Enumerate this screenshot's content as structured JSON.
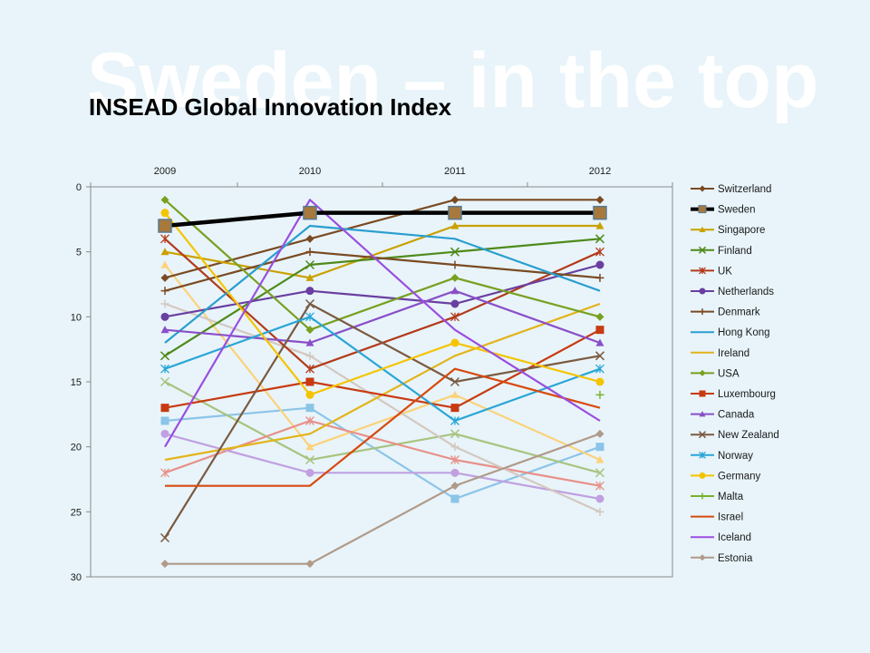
{
  "slide": {
    "heading": "Sweden – in the top",
    "subtitle": "INSEAD Global Innovation Index"
  },
  "chart_data": {
    "type": "line",
    "title": "",
    "categories": [
      "2009",
      "2010",
      "2011",
      "2012"
    ],
    "x_axis_position": "top",
    "ylim": [
      0,
      30
    ],
    "y_reversed": true,
    "y_ticks": [
      0,
      5,
      10,
      15,
      20,
      25,
      30
    ],
    "grid": false,
    "legend_position": "right",
    "series": [
      {
        "name": "Switzerland",
        "values": [
          7,
          4,
          1,
          1
        ],
        "color": "#7a4a22",
        "marker": "diamond"
      },
      {
        "name": "Sweden",
        "values": [
          3,
          2,
          2,
          2
        ],
        "color": "#000000",
        "marker": "square",
        "highlight": true
      },
      {
        "name": "Singapore",
        "values": [
          5,
          7,
          3,
          3
        ],
        "color": "#c9a100",
        "marker": "triangle"
      },
      {
        "name": "Finland",
        "values": [
          13,
          6,
          5,
          4
        ],
        "color": "#4e8a1a",
        "marker": "x"
      },
      {
        "name": "UK",
        "values": [
          4,
          14,
          10,
          5
        ],
        "color": "#b33a1a",
        "marker": "star"
      },
      {
        "name": "Netherlands",
        "values": [
          10,
          8,
          9,
          6
        ],
        "color": "#6a3fa0",
        "marker": "circle"
      },
      {
        "name": "Denmark",
        "values": [
          8,
          5,
          6,
          7
        ],
        "color": "#7a4a22",
        "marker": "plus"
      },
      {
        "name": "Hong Kong",
        "values": [
          12,
          3,
          4,
          8
        ],
        "color": "#2a9ecf",
        "marker": "none"
      },
      {
        "name": "Ireland",
        "values": [
          21,
          19,
          13,
          9
        ],
        "color": "#e3b41a",
        "marker": "none"
      },
      {
        "name": "USA",
        "values": [
          1,
          11,
          7,
          10
        ],
        "color": "#78a020",
        "marker": "diamond"
      },
      {
        "name": "Luxembourg",
        "values": [
          17,
          15,
          17,
          11
        ],
        "color": "#c83a10",
        "marker": "square"
      },
      {
        "name": "Canada",
        "values": [
          11,
          12,
          8,
          12
        ],
        "color": "#8a4fc8",
        "marker": "triangle"
      },
      {
        "name": "New Zealand",
        "values": [
          27,
          9,
          15,
          13
        ],
        "color": "#7a5a40",
        "marker": "x"
      },
      {
        "name": "Norway",
        "values": [
          14,
          10,
          18,
          14
        ],
        "color": "#2aa6d6",
        "marker": "star"
      },
      {
        "name": "Germany",
        "values": [
          2,
          16,
          12,
          15
        ],
        "color": "#f5c400",
        "marker": "circle"
      },
      {
        "name": "Malta",
        "values": [
          null,
          null,
          null,
          16
        ],
        "color": "#7ab030",
        "marker": "plus"
      },
      {
        "name": "Israel",
        "values": [
          23,
          23,
          14,
          17
        ],
        "color": "#d84a10",
        "marker": "none"
      },
      {
        "name": "Iceland",
        "values": [
          20,
          1,
          11,
          18
        ],
        "color": "#9a4ee0",
        "marker": "none"
      },
      {
        "name": "Estonia",
        "values": [
          29,
          29,
          23,
          19
        ],
        "color": "#b09a88",
        "marker": "diamond"
      },
      {
        "name": "",
        "values": [
          18,
          17,
          24,
          20
        ],
        "color": "#8cc4e8",
        "marker": "square"
      },
      {
        "name": "",
        "values": [
          6,
          20,
          16,
          21
        ],
        "color": "#fcd27a",
        "marker": "triangle"
      },
      {
        "name": "",
        "values": [
          15,
          21,
          19,
          22
        ],
        "color": "#a8c480",
        "marker": "x"
      },
      {
        "name": "",
        "values": [
          22,
          18,
          21,
          23
        ],
        "color": "#e89088",
        "marker": "star"
      },
      {
        "name": "",
        "values": [
          19,
          22,
          22,
          24
        ],
        "color": "#c0a0e0",
        "marker": "circle"
      },
      {
        "name": "",
        "values": [
          9,
          13,
          20,
          25
        ],
        "color": "#d4c8c0",
        "marker": "plus"
      }
    ]
  }
}
